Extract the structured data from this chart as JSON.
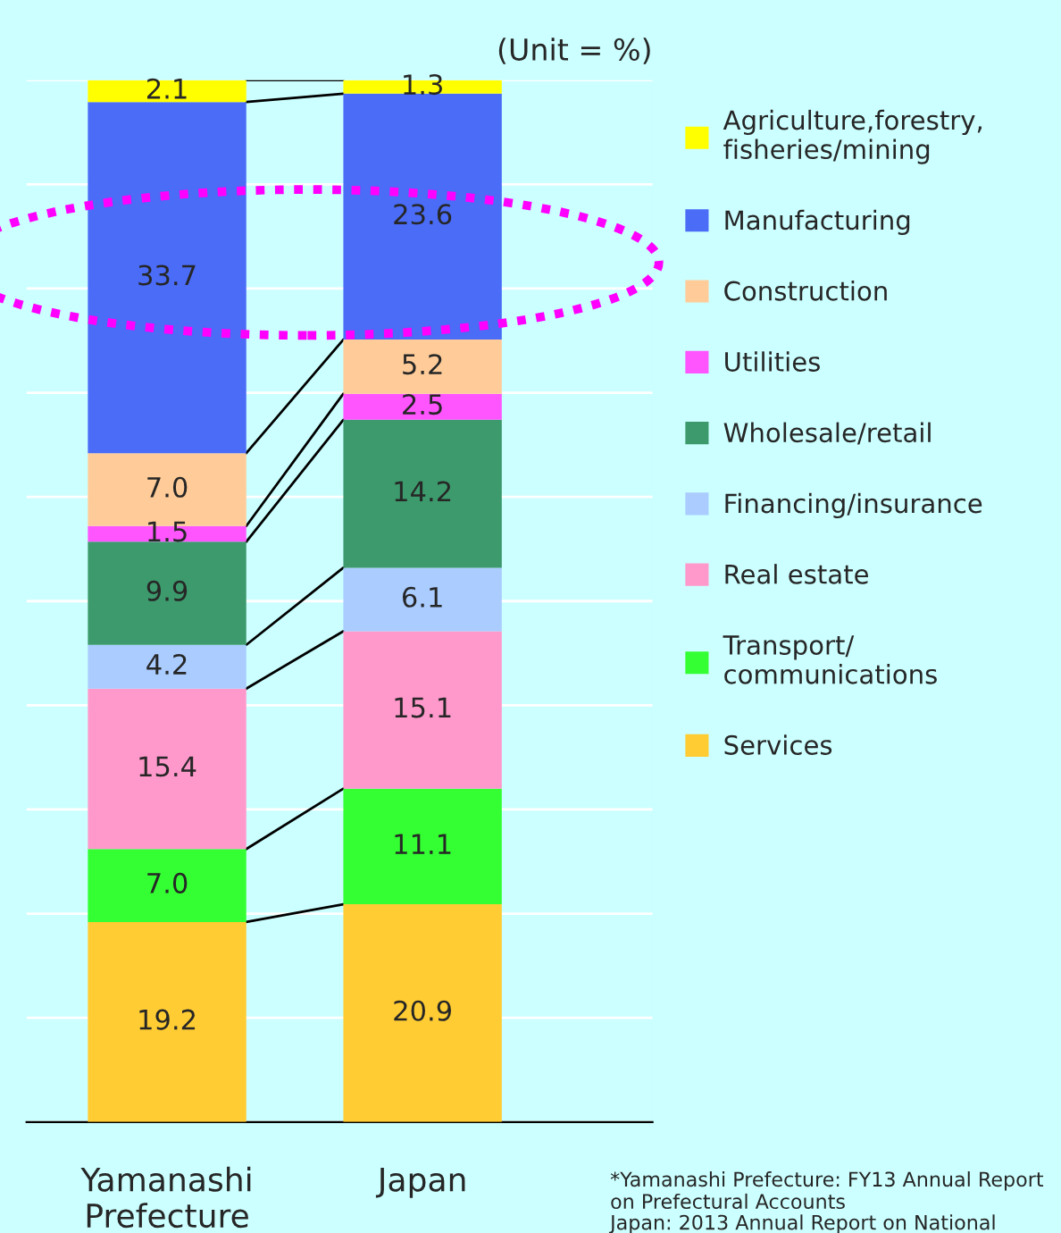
{
  "chart_data": {
    "type": "bar",
    "stacked": true,
    "title": "(Unit = %)",
    "categories": [
      "Yamanashi\nPrefecture",
      "Japan"
    ],
    "series": [
      {
        "name": "Services",
        "color": "#ffcc33",
        "values": [
          19.2,
          20.9
        ],
        "value_labels": [
          "19.2",
          "20.9"
        ]
      },
      {
        "name": "Transport/\ncommunications",
        "color": "#33ff33",
        "values": [
          7.0,
          11.1
        ],
        "value_labels": [
          "7.0",
          "11.1"
        ]
      },
      {
        "name": "Real estate",
        "color": "#ff99cc",
        "values": [
          15.4,
          15.1
        ],
        "value_labels": [
          "15.4",
          "15.1"
        ]
      },
      {
        "name": "Financing/insurance",
        "color": "#aaccff",
        "values": [
          4.2,
          6.1
        ],
        "value_labels": [
          "4.2",
          "6.1"
        ]
      },
      {
        "name": "Wholesale/retail",
        "color": "#3c9a6c",
        "values": [
          9.9,
          14.2
        ],
        "value_labels": [
          "9.9",
          "14.2"
        ]
      },
      {
        "name": "Utilities",
        "color": "#ff55ff",
        "values": [
          1.5,
          2.5
        ],
        "value_labels": [
          "1.5",
          "2.5"
        ]
      },
      {
        "name": "Construction",
        "color": "#ffcc99",
        "values": [
          7.0,
          5.2
        ],
        "value_labels": [
          "7.0",
          "5.2"
        ]
      },
      {
        "name": "Manufacturing",
        "color": "#4a6cf7",
        "values": [
          33.7,
          23.6
        ],
        "value_labels": [
          "33.7",
          "23.6"
        ]
      },
      {
        "name": "Agriculture,forestry,\nfisheries/mining",
        "color": "#ffff00",
        "values": [
          2.1,
          1.3
        ],
        "value_labels": [
          "2.1",
          "1.3"
        ]
      }
    ],
    "ylim": [
      0,
      100
    ],
    "yticks": [
      {
        "value": 0,
        "label": null
      },
      {
        "value": 10,
        "label": null
      },
      {
        "value": 20,
        "label": null
      },
      {
        "value": 30,
        "label": null
      },
      {
        "value": 40,
        "label": null
      },
      {
        "value": 50,
        "label": null
      },
      {
        "value": 60,
        "label": null
      },
      {
        "value": 70,
        "label": null
      },
      {
        "value": 80,
        "label": null
      },
      {
        "value": 90,
        "label": null
      },
      {
        "value": 100,
        "label": null
      }
    ],
    "tick_labels": "x",
    "grid": "y",
    "legend": "right",
    "annotations": [
      "*Yamanashi Prefecture: FY13 Annual Report on Prefectural Accounts",
      "Japan: 2013 Annual Report on National Accounts"
    ]
  }
}
